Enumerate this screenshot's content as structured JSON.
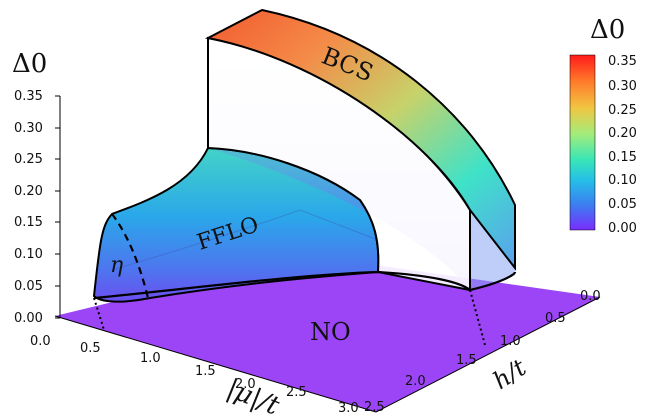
{
  "chart_data": {
    "type": "surface",
    "z_label": "Δ0",
    "x_label": "|μ|/t",
    "y_label": "h/t",
    "z_ticks": [
      "0.00",
      "0.05",
      "0.10",
      "0.15",
      "0.20",
      "0.25",
      "0.30",
      "0.35"
    ],
    "x_ticks": [
      "0.0",
      "0.5",
      "1.0",
      "1.5",
      "2.0",
      "2.5",
      "3.0"
    ],
    "y_ticks": [
      "0.0",
      "0.5",
      "1.0",
      "1.5",
      "2.0",
      "2.5"
    ],
    "zlim": [
      0,
      0.35
    ],
    "xlim": [
      0,
      3.0
    ],
    "ylim": [
      0,
      2.5
    ],
    "regions": [
      {
        "name": "BCS",
        "delta_max": 0.35
      },
      {
        "name": "FFLO",
        "delta_max": 0.15
      },
      {
        "name": "NO",
        "delta": 0.0
      }
    ],
    "annotation": "η",
    "colorbar": {
      "title": "Δ0",
      "range": [
        0,
        0.35
      ],
      "ticks": [
        "0.35",
        "0.30",
        "0.25",
        "0.20",
        "0.15",
        "0.10",
        "0.05",
        "0.00"
      ],
      "colormap": "rainbow"
    }
  }
}
